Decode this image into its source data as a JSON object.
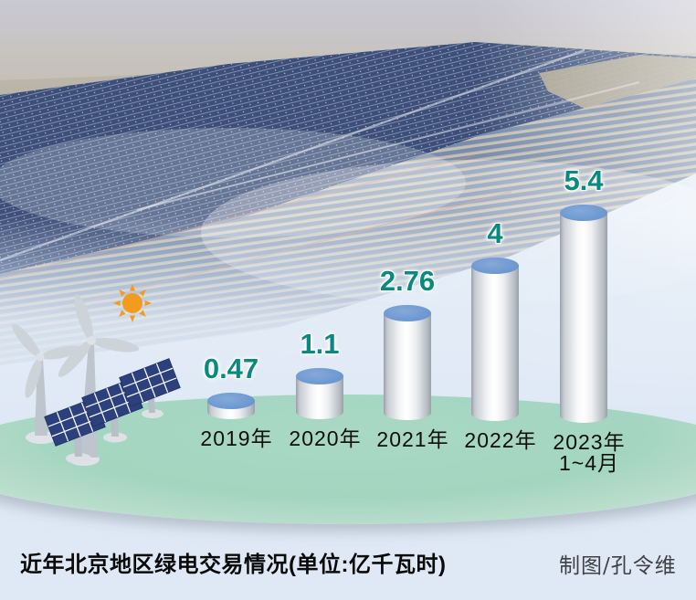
{
  "chart_data": {
    "type": "bar",
    "style": "3d-cylinder",
    "title": "近年北京地区绿电交易情况",
    "unit_label": "单位:亿千瓦时",
    "categories": [
      {
        "label": "2019年",
        "sub": ""
      },
      {
        "label": "2020年",
        "sub": ""
      },
      {
        "label": "2021年",
        "sub": ""
      },
      {
        "label": "2022年",
        "sub": ""
      },
      {
        "label": "2023年",
        "sub": "1~4月"
      }
    ],
    "values": [
      0.47,
      1.1,
      2.76,
      4,
      5.4
    ],
    "value_labels": [
      "0.47",
      "1.1",
      "2.76",
      "4",
      "5.4"
    ],
    "ylim": [
      0,
      5.4
    ],
    "grid": false,
    "legend": false,
    "colors": {
      "value_text": "#0a8a7e",
      "cylinder_top": "#6e9ad1",
      "cylinder_body": "#f2f3f5",
      "ground": "#a6d7c3"
    }
  },
  "caption": {
    "title": "近年北京地区绿电交易情况(单位:亿千瓦时)",
    "credit": "制图/孔令维"
  },
  "decor": {
    "background_photo": "aerial-solar-farm-photo",
    "icons": [
      "sun-icon",
      "wind-turbine-icon",
      "solar-panel-icon"
    ],
    "sun_color": "#f19c1d",
    "panel_color": "#2c407d",
    "ground_color": "#a6d7c3"
  }
}
